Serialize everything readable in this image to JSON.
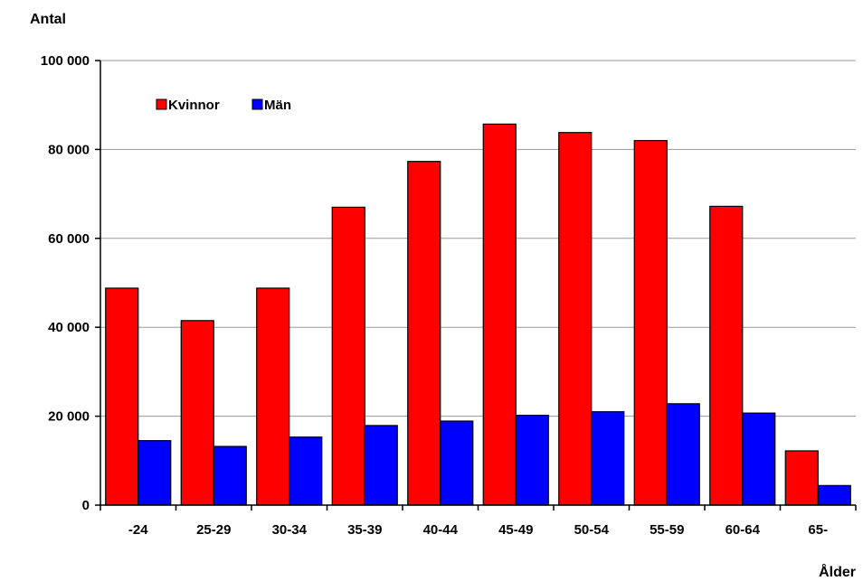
{
  "chart_data": {
    "type": "bar",
    "ylabel": "Antal",
    "xlabel": "Ålder",
    "categories": [
      "-24",
      "25-29",
      "30-34",
      "35-39",
      "40-44",
      "45-49",
      "50-54",
      "55-59",
      "60-64",
      "65-"
    ],
    "series": [
      {
        "name": "Kvinnor",
        "color": "#ff0000",
        "values": [
          48800,
          41500,
          48800,
          67000,
          77300,
          85700,
          83800,
          82000,
          67200,
          12200
        ]
      },
      {
        "name": "Män",
        "color": "#0000ff",
        "values": [
          14500,
          13200,
          15300,
          17900,
          18900,
          20200,
          21000,
          22800,
          20700,
          4400
        ]
      }
    ],
    "ylim": [
      0,
      100000
    ],
    "yticks": [
      0,
      20000,
      40000,
      60000,
      80000,
      100000
    ],
    "ytick_labels": [
      "0",
      "20 000",
      "40 000",
      "60 000",
      "80 000",
      "100 000"
    ],
    "grid": true,
    "legend": "top-left"
  }
}
